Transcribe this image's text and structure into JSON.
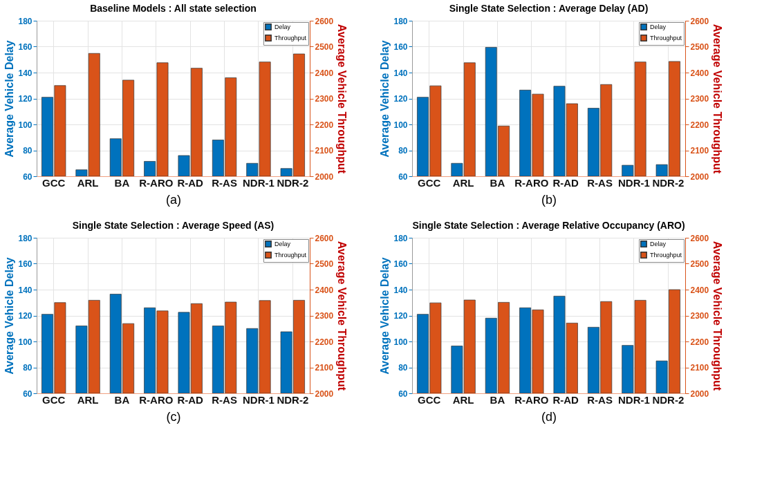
{
  "chart_data": [
    {
      "type": "bar",
      "title": "Baseline Models : All state selection",
      "categories": [
        "GCC",
        "ARL",
        "BA",
        "R-ARO",
        "R-AD",
        "R-AS",
        "NDR-1",
        "NDR-2"
      ],
      "ylabel": "Average Vehicle Delay",
      "y2label": "Average Vehicle Throughput",
      "ylim": [
        60,
        180
      ],
      "yticks": [
        60,
        80,
        100,
        120,
        140,
        160,
        180
      ],
      "y2lim": [
        2000,
        2600
      ],
      "y2ticks": [
        2000,
        2100,
        2200,
        2300,
        2400,
        2500,
        2600
      ],
      "grid": true,
      "legend": "top right",
      "annotations": [
        "(a)"
      ],
      "series": [
        {
          "name": "Delay",
          "color": "#0072bd",
          "values": [
            121,
            65,
            89,
            71.5,
            76,
            88,
            70,
            66
          ]
        },
        {
          "name": "Throughput",
          "color": "#d95319",
          "axis": "y2",
          "values": [
            2350,
            2474,
            2371,
            2438,
            2417,
            2380,
            2441,
            2472
          ]
        }
      ]
    },
    {
      "type": "bar",
      "title": "Single State Selection : Average Delay (AD)",
      "categories": [
        "GCC",
        "ARL",
        "BA",
        "R-ARO",
        "R-AD",
        "R-AS",
        "NDR-1",
        "NDR-2"
      ],
      "ylabel": "Average Vehicle Delay",
      "y2label": "Average Vehicle Throughput",
      "ylim": [
        60,
        180
      ],
      "yticks": [
        60,
        80,
        100,
        120,
        140,
        160,
        180
      ],
      "y2lim": [
        2000,
        2600
      ],
      "y2ticks": [
        2000,
        2100,
        2200,
        2300,
        2400,
        2500,
        2600
      ],
      "grid": true,
      "legend": "top right",
      "annotations": [
        "(b)"
      ],
      "series": [
        {
          "name": "Delay",
          "color": "#0072bd",
          "values": [
            121,
            70,
            159.5,
            126.5,
            129.5,
            112.5,
            68.5,
            69
          ]
        },
        {
          "name": "Throughput",
          "color": "#d95319",
          "axis": "y2",
          "values": [
            2349,
            2438,
            2194,
            2317,
            2280,
            2354,
            2441,
            2443
          ]
        }
      ]
    },
    {
      "type": "bar",
      "title": "Single State Selection : Average Speed (AS)",
      "categories": [
        "GCC",
        "ARL",
        "BA",
        "R-ARO",
        "R-AD",
        "R-AS",
        "NDR-1",
        "NDR-2"
      ],
      "ylabel": "Average Vehicle Delay",
      "y2label": "Average Vehicle Throughput",
      "ylim": [
        60,
        180
      ],
      "yticks": [
        60,
        80,
        100,
        120,
        140,
        160,
        180
      ],
      "y2lim": [
        2000,
        2600
      ],
      "y2ticks": [
        2000,
        2100,
        2200,
        2300,
        2400,
        2500,
        2600
      ],
      "grid": true,
      "legend": "top right",
      "annotations": [
        "(c)"
      ],
      "series": [
        {
          "name": "Delay",
          "color": "#0072bd",
          "values": [
            121,
            112,
            136.5,
            126,
            122.5,
            112,
            110,
            107.5
          ]
        },
        {
          "name": "Throughput",
          "color": "#d95319",
          "axis": "y2",
          "values": [
            2350,
            2359,
            2269,
            2318,
            2346,
            2352,
            2358,
            2359
          ]
        }
      ]
    },
    {
      "type": "bar",
      "title": "Single State Selection : Average Relative Occupancy (ARO)",
      "categories": [
        "GCC",
        "ARL",
        "BA",
        "R-ARO",
        "R-AD",
        "R-AS",
        "NDR-1",
        "NDR-2"
      ],
      "ylabel": "Average Vehicle Delay",
      "y2label": "Average Vehicle Throughput",
      "ylim": [
        60,
        180
      ],
      "yticks": [
        60,
        80,
        100,
        120,
        140,
        160,
        180
      ],
      "y2lim": [
        2000,
        2600
      ],
      "y2ticks": [
        2000,
        2100,
        2200,
        2300,
        2400,
        2500,
        2600
      ],
      "grid": true,
      "legend": "top right",
      "annotations": [
        "(d)"
      ],
      "series": [
        {
          "name": "Delay",
          "color": "#0072bd",
          "values": [
            121,
            96.5,
            118,
            126,
            135,
            111,
            97,
            85
          ]
        },
        {
          "name": "Throughput",
          "color": "#d95319",
          "axis": "y2",
          "values": [
            2349,
            2360,
            2351,
            2322,
            2271,
            2354,
            2359,
            2400
          ]
        }
      ]
    }
  ]
}
